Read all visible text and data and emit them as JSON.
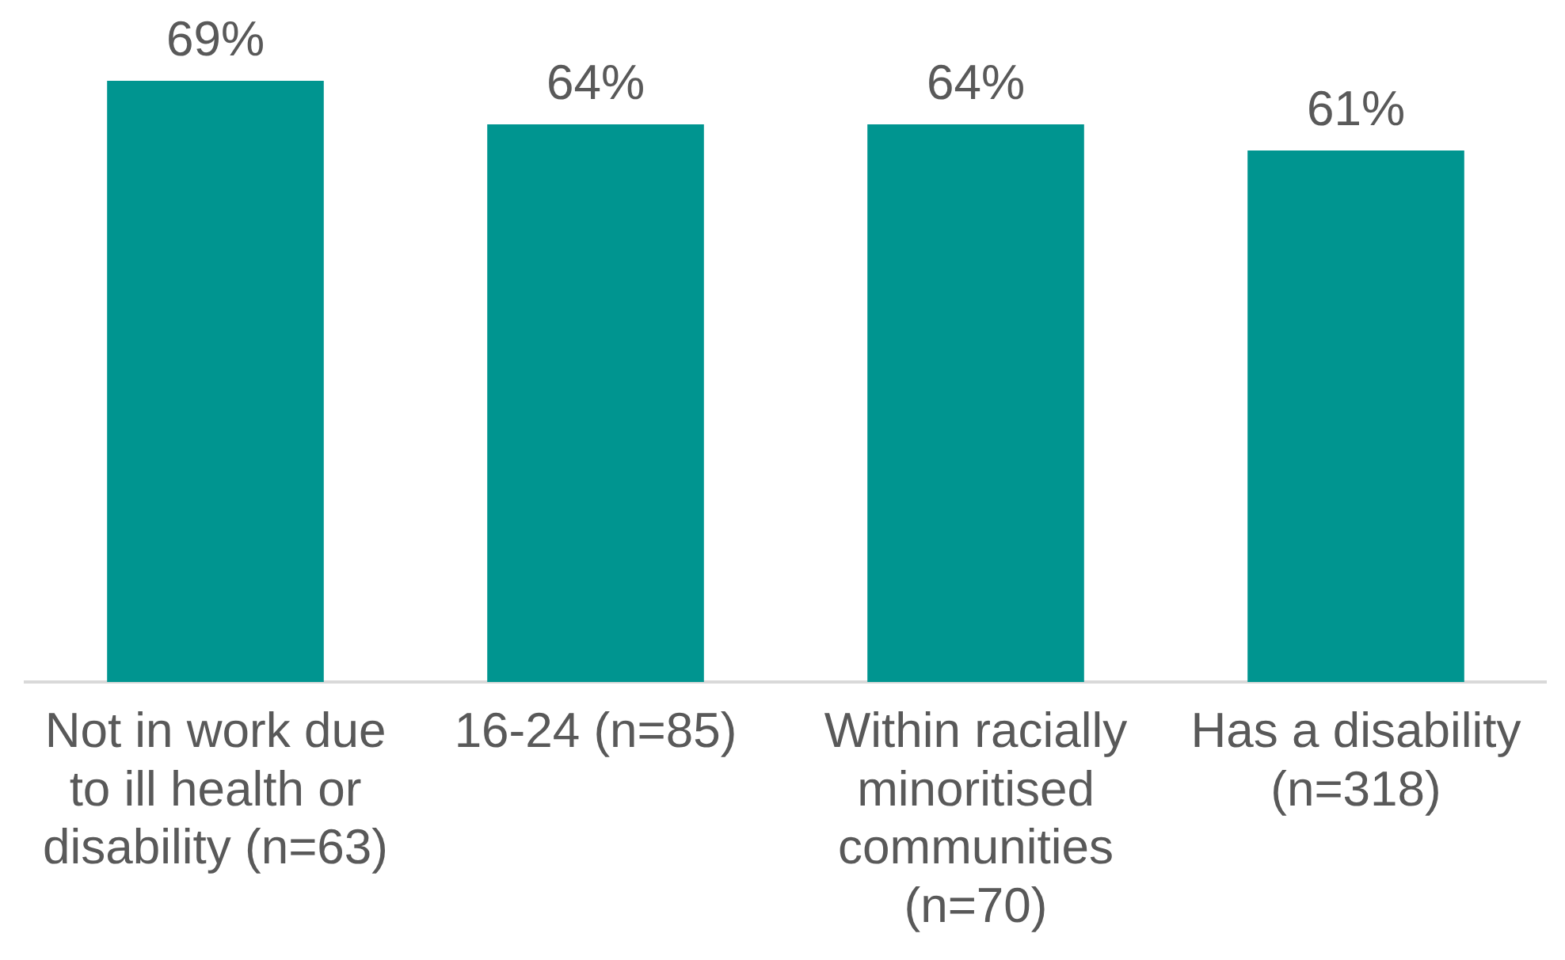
{
  "chart_data": {
    "type": "bar",
    "categories": [
      "Not in work due to ill health or disability (n=63)",
      "16-24 (n=85)",
      "Within racially minoritised communities (n=70)",
      "Has a disability (n=318)"
    ],
    "values": [
      69,
      64,
      64,
      61
    ],
    "value_labels": [
      "69%",
      "64%",
      "64%",
      "61%"
    ],
    "color": "#009590",
    "grid": false,
    "legend": false
  }
}
